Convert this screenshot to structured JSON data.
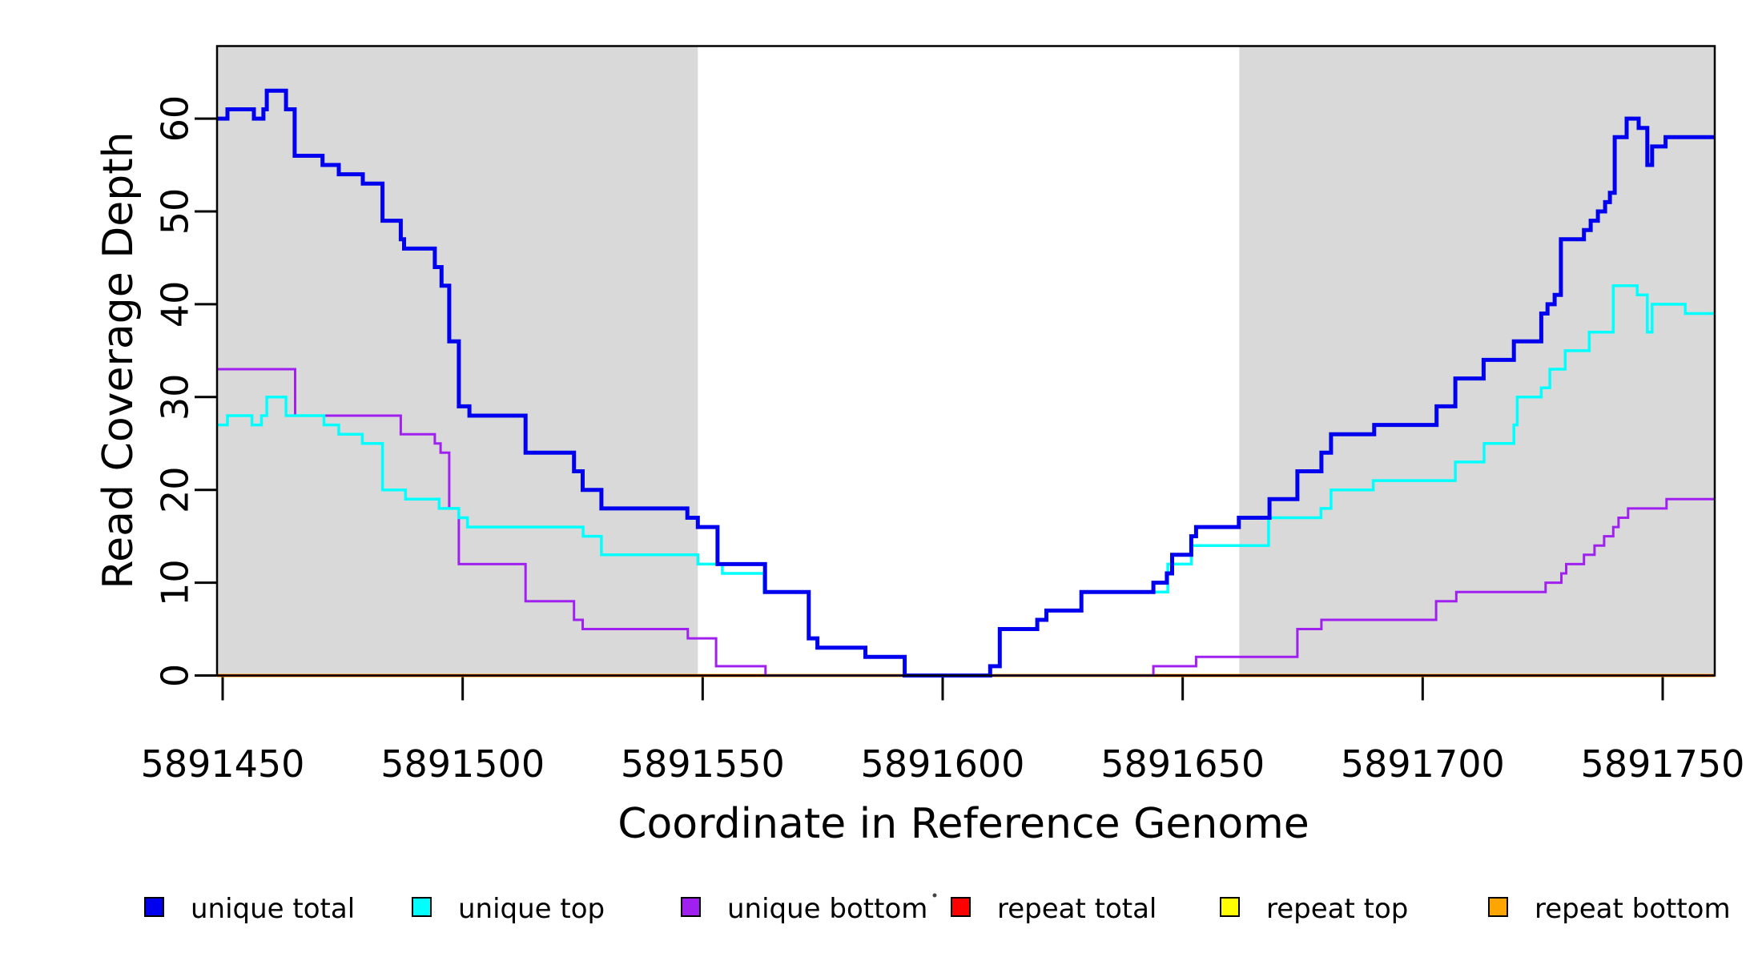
{
  "figure": {
    "background": "#ffffff",
    "shaded_region_color": "#d9d9d9",
    "axis_color": "#000000"
  },
  "chart_data": {
    "type": "line",
    "subtype": "step-after-staircase",
    "title": "",
    "xlabel": "Coordinate in Reference Genome",
    "ylabel": "Read Coverage Depth",
    "xlim": [
      5891448.8,
      5891761.5
    ],
    "ylim": [
      0,
      67.8
    ],
    "x_ticks": [
      5891450,
      5891500,
      5891550,
      5891600,
      5891650,
      5891700,
      5891750
    ],
    "y_ticks": [
      0,
      10,
      20,
      30,
      40,
      50,
      60
    ],
    "grid": false,
    "legend_position": "bottom",
    "shaded_regions": [
      {
        "start": 5891448.8,
        "end": 5891549.0
      },
      {
        "start": 5891661.8,
        "end": 5891761.5
      }
    ],
    "series": [
      {
        "name": "unique total",
        "color": "#0000EE",
        "stroke_width": 5,
        "points": [
          [
            5891448.8,
            60
          ],
          [
            5891451,
            61
          ],
          [
            5891456.5,
            60
          ],
          [
            5891458.5,
            61
          ],
          [
            5891459.2,
            63
          ],
          [
            5891463.2,
            61
          ],
          [
            5891465,
            56
          ],
          [
            5891470.8,
            55
          ],
          [
            5891474.2,
            54
          ],
          [
            5891479.2,
            53
          ],
          [
            5891483.3,
            49
          ],
          [
            5891487.1,
            47
          ],
          [
            5891487.8,
            46
          ],
          [
            5891494.2,
            44
          ],
          [
            5891495.6,
            42
          ],
          [
            5891497.2,
            36
          ],
          [
            5891499.2,
            29
          ],
          [
            5891501.4,
            28
          ],
          [
            5891513.1,
            24
          ],
          [
            5891523.2,
            22
          ],
          [
            5891525,
            20
          ],
          [
            5891528.9,
            18
          ],
          [
            5891546.8,
            17
          ],
          [
            5891549,
            16
          ],
          [
            5891553.1,
            12
          ],
          [
            5891563,
            9
          ],
          [
            5891572.1,
            4
          ],
          [
            5891573.9,
            3
          ],
          [
            5891583.9,
            2
          ],
          [
            5891592.1,
            0
          ],
          [
            5891609.9,
            1
          ],
          [
            5891611.9,
            5
          ],
          [
            5891619.7,
            6
          ],
          [
            5891621.6,
            7
          ],
          [
            5891628.9,
            9
          ],
          [
            5891643.9,
            10
          ],
          [
            5891646.7,
            11
          ],
          [
            5891647.8,
            13
          ],
          [
            5891651.8,
            15
          ],
          [
            5891652.8,
            16
          ],
          [
            5891661.7,
            17
          ],
          [
            5891668.1,
            19
          ],
          [
            5891673.9,
            22
          ],
          [
            5891678.9,
            24
          ],
          [
            5891680.9,
            26
          ],
          [
            5891689.9,
            27
          ],
          [
            5891702.9,
            29
          ],
          [
            5891706.8,
            32
          ],
          [
            5891712.7,
            34
          ],
          [
            5891719,
            36
          ],
          [
            5891724.7,
            39
          ],
          [
            5891726,
            40
          ],
          [
            5891727.5,
            41
          ],
          [
            5891728.8,
            47
          ],
          [
            5891733.6,
            48
          ],
          [
            5891735,
            49
          ],
          [
            5891736.5,
            50
          ],
          [
            5891738,
            51
          ],
          [
            5891739,
            52
          ],
          [
            5891740,
            58
          ],
          [
            5891742.5,
            60
          ],
          [
            5891745,
            59
          ],
          [
            5891746.8,
            55
          ],
          [
            5891747.8,
            57
          ],
          [
            5891750.6,
            58
          ]
        ]
      },
      {
        "name": "unique top",
        "color": "#00FFFF",
        "stroke_width": 3.5,
        "points": [
          [
            5891448.8,
            27
          ],
          [
            5891451,
            28
          ],
          [
            5891456.1,
            27
          ],
          [
            5891458.1,
            28
          ],
          [
            5891459.2,
            30
          ],
          [
            5891463.2,
            28
          ],
          [
            5891471.1,
            27
          ],
          [
            5891474.2,
            26
          ],
          [
            5891479.1,
            25
          ],
          [
            5891483.3,
            20
          ],
          [
            5891488.1,
            19
          ],
          [
            5891495.1,
            18
          ],
          [
            5891499.2,
            17
          ],
          [
            5891501,
            16
          ],
          [
            5891525.1,
            15
          ],
          [
            5891528.9,
            13
          ],
          [
            5891549,
            12
          ],
          [
            5891554.1,
            11
          ],
          [
            5891562.8,
            9
          ],
          [
            5891572.1,
            4
          ],
          [
            5891573.9,
            3
          ],
          [
            5891583.9,
            2
          ],
          [
            5891592.1,
            0
          ],
          [
            5891609.9,
            1
          ],
          [
            5891611.9,
            5
          ],
          [
            5891619.7,
            6
          ],
          [
            5891621.6,
            7
          ],
          [
            5891628.9,
            9
          ],
          [
            5891646.9,
            12
          ],
          [
            5891651.8,
            14
          ],
          [
            5891667.9,
            17
          ],
          [
            5891678.8,
            18
          ],
          [
            5891680.9,
            20
          ],
          [
            5891689.7,
            21
          ],
          [
            5891706.8,
            23
          ],
          [
            5891712.8,
            25
          ],
          [
            5891719,
            27
          ],
          [
            5891719.7,
            30
          ],
          [
            5891724.7,
            31
          ],
          [
            5891726.5,
            33
          ],
          [
            5891729.7,
            35
          ],
          [
            5891734.7,
            37
          ],
          [
            5891739.7,
            42
          ],
          [
            5891744.7,
            41
          ],
          [
            5891746.8,
            37
          ],
          [
            5891747.8,
            40
          ],
          [
            5891754.7,
            39
          ]
        ]
      },
      {
        "name": "unique bottom",
        "color": "#A020F0",
        "stroke_width": 3,
        "points": [
          [
            5891448.8,
            33
          ],
          [
            5891465.1,
            28
          ],
          [
            5891487.1,
            26
          ],
          [
            5891494.2,
            25
          ],
          [
            5891495.4,
            24
          ],
          [
            5891497.2,
            18
          ],
          [
            5891499.2,
            12
          ],
          [
            5891513.1,
            8
          ],
          [
            5891523.2,
            6
          ],
          [
            5891525,
            5
          ],
          [
            5891546.9,
            4
          ],
          [
            5891552.8,
            1
          ],
          [
            5891563.1,
            0
          ],
          [
            5891643.9,
            1
          ],
          [
            5891652.8,
            2
          ],
          [
            5891673.9,
            5
          ],
          [
            5891678.9,
            6
          ],
          [
            5891702.8,
            8
          ],
          [
            5891707,
            9
          ],
          [
            5891725.6,
            10
          ],
          [
            5891728.9,
            11
          ],
          [
            5891729.9,
            12
          ],
          [
            5891733.6,
            13
          ],
          [
            5891735.8,
            14
          ],
          [
            5891737.8,
            15
          ],
          [
            5891739.7,
            16
          ],
          [
            5891740.8,
            17
          ],
          [
            5891742.8,
            18
          ],
          [
            5891750.8,
            19
          ]
        ]
      },
      {
        "name": "repeat total",
        "color": "#FF0000",
        "stroke_width": 3,
        "points": [
          [
            5891448.8,
            0
          ]
        ]
      },
      {
        "name": "repeat top",
        "color": "#FFFF00",
        "stroke_width": 3,
        "points": [
          [
            5891448.8,
            0
          ]
        ]
      },
      {
        "name": "repeat bottom",
        "color": "#FFA500",
        "stroke_width": 4,
        "points": [
          [
            5891448.8,
            0
          ]
        ]
      }
    ],
    "legend": {
      "entries": [
        {
          "label": "unique total",
          "color": "#0000EE"
        },
        {
          "label": "unique top",
          "color": "#00FFFF"
        },
        {
          "label": "unique bottom",
          "color": "#A020F0"
        },
        {
          "label": "repeat total",
          "color": "#FF0000"
        },
        {
          "label": "repeat top",
          "color": "#FFFF00"
        },
        {
          "label": "repeat bottom",
          "color": "#FFA500"
        }
      ]
    }
  }
}
